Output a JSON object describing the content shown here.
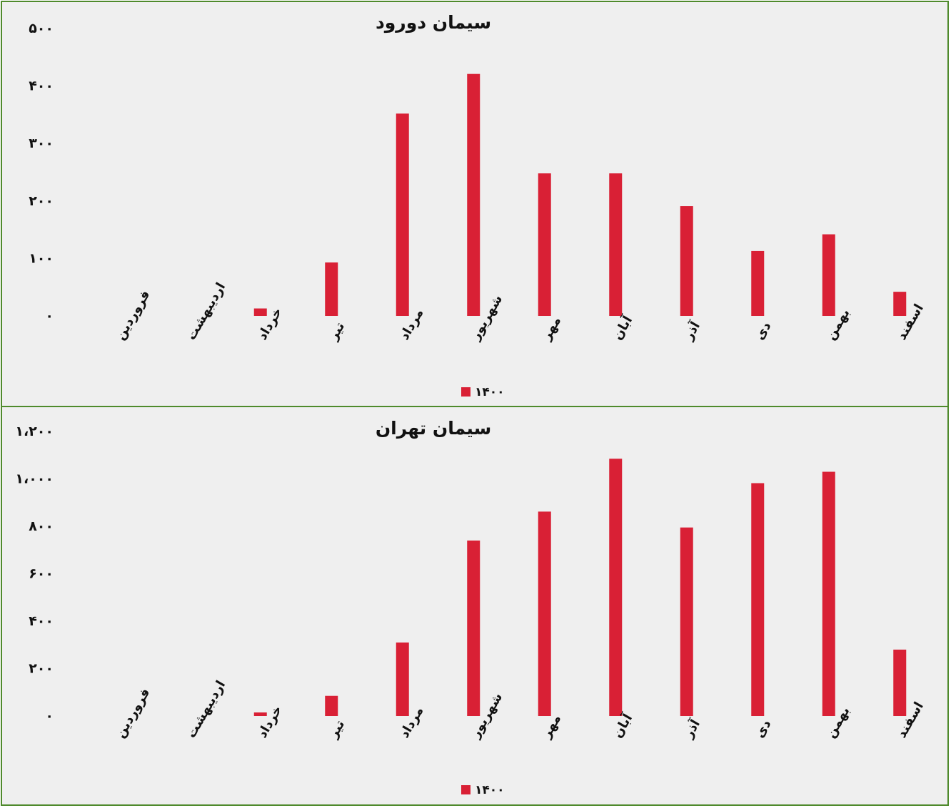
{
  "chart_data": [
    {
      "type": "bar",
      "title": "سیمان دورود",
      "categories": [
        "فروردین",
        "اردیبهشت",
        "خرداد",
        "تیر",
        "مرداد",
        "شهریور",
        "مهر",
        "آبان",
        "آذر",
        "دی",
        "بهمن",
        "اسفند"
      ],
      "series": [
        {
          "name": "۱۴۰۰",
          "color": "#d92035",
          "values": [
            0,
            0,
            13,
            93,
            352,
            421,
            248,
            248,
            191,
            113,
            142,
            42
          ]
        }
      ],
      "ylim": [
        0,
        500
      ],
      "yticks": [
        0,
        100,
        200,
        300,
        400,
        500
      ],
      "ytick_labels": [
        "۰",
        "۱۰۰",
        "۲۰۰",
        "۳۰۰",
        "۴۰۰",
        "۵۰۰"
      ],
      "grid": false,
      "legend_position": "bottom"
    },
    {
      "type": "bar",
      "title": "سیمان تهران",
      "categories": [
        "فروردین",
        "اردیبهشت",
        "خرداد",
        "تیر",
        "مرداد",
        "شهریور",
        "مهر",
        "آبان",
        "آذر",
        "دی",
        "بهمن",
        "اسفند"
      ],
      "series": [
        {
          "name": "۱۴۰۰",
          "color": "#d92035",
          "values": [
            0,
            0,
            15,
            85,
            310,
            740,
            862,
            1085,
            795,
            982,
            1030,
            280
          ]
        }
      ],
      "ylim": [
        0,
        1200
      ],
      "yticks": [
        0,
        200,
        400,
        600,
        800,
        1000,
        1200
      ],
      "ytick_labels": [
        "۰",
        "۲۰۰",
        "۴۰۰",
        "۶۰۰",
        "۸۰۰",
        "۱،۰۰۰",
        "۱،۲۰۰"
      ],
      "grid": false,
      "legend_position": "bottom"
    }
  ]
}
